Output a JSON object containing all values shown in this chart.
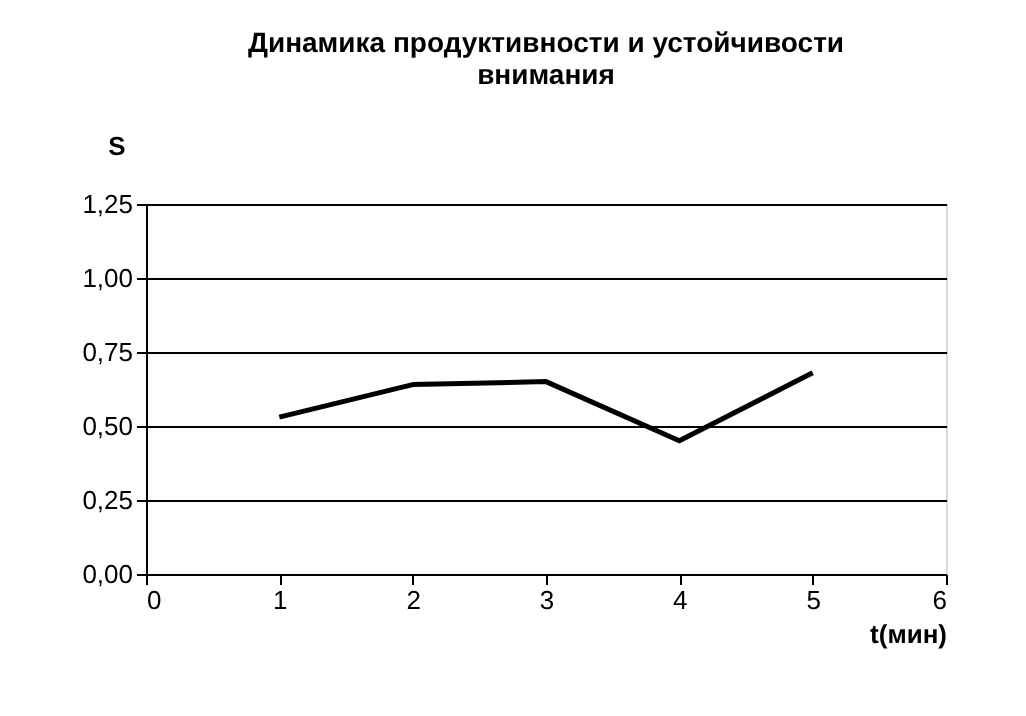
{
  "chart_data": {
    "type": "line",
    "title": "Динамика продуктивности и устойчивости внимания",
    "xlabel": "t(мин)",
    "ylabel": "S",
    "x": [
      1,
      2,
      3,
      4,
      5
    ],
    "series": [
      {
        "color": "#000000",
        "values": [
          0.53,
          0.64,
          0.65,
          0.45,
          0.68
        ]
      }
    ],
    "xlim": [
      0,
      6
    ],
    "xticks": [
      0,
      1,
      2,
      3,
      4,
      5,
      6
    ],
    "ylim": [
      0,
      1.25
    ],
    "yticks": [
      {
        "value": 0,
        "label": "0,00"
      },
      {
        "value": 0.25,
        "label": "0,25"
      },
      {
        "value": 0.5,
        "label": "0,50"
      },
      {
        "value": 0.75,
        "label": "0,75"
      },
      {
        "value": 1.0,
        "label": "1,00"
      },
      {
        "value": 1.25,
        "label": "1,25"
      }
    ],
    "grid": "y",
    "marker": "none",
    "line_style": "solid"
  }
}
